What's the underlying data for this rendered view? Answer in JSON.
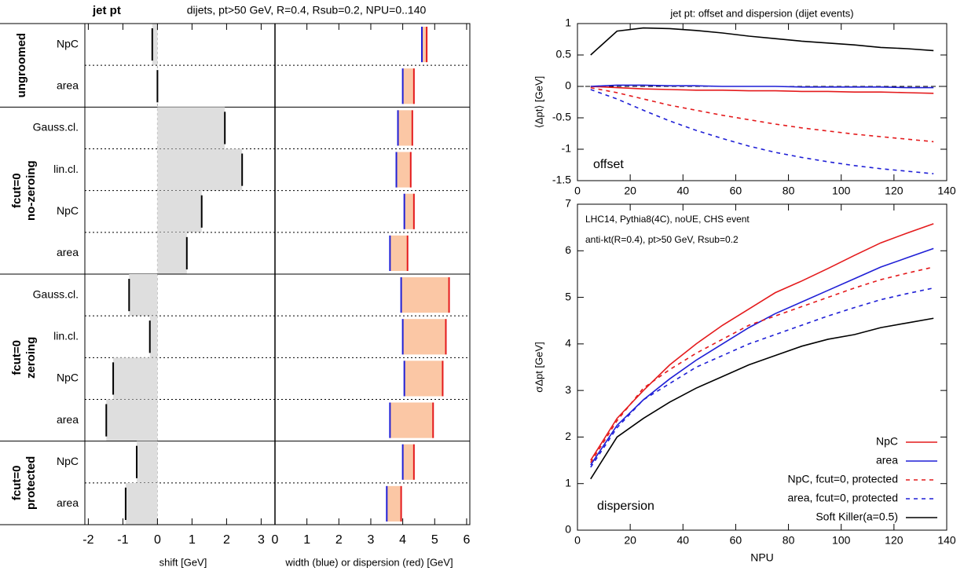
{
  "chart_data": [
    {
      "type": "summary",
      "title": "jet pt",
      "subtitle": "dijets, pt>50 GeV, R=0.4, Rsub=0.2, NPU=0..140",
      "xlabel": "shift [GeV]",
      "x2label": "width (blue) or dispersion (red) [GeV]",
      "xlim": [
        -2.1,
        3.4
      ],
      "xticks": [
        -2,
        -1,
        0,
        1,
        2,
        3
      ],
      "x2lim": [
        0,
        6.1
      ],
      "x2ticks": [
        0,
        1,
        2,
        3,
        4,
        5,
        6
      ],
      "groups": [
        {
          "name": [
            "ungroomed"
          ],
          "categories": [
            "NpC",
            "area"
          ],
          "shift": [
            -0.15,
            0.0
          ],
          "width": [
            4.6,
            4.0
          ],
          "dispersion": [
            4.75,
            4.35
          ]
        },
        {
          "name": [
            "fcut=0",
            "no-zeroing"
          ],
          "categories": [
            "Gauss.cl.",
            "lin.cl.",
            "NpC",
            "area"
          ],
          "shift": [
            1.95,
            2.45,
            1.28,
            0.85
          ],
          "width": [
            3.85,
            3.8,
            4.05,
            3.6
          ],
          "dispersion": [
            4.3,
            4.25,
            4.35,
            4.15
          ]
        },
        {
          "name": [
            "fcut=0",
            "zeroing"
          ],
          "categories": [
            "Gauss.cl.",
            "lin.cl.",
            "NpC",
            "area"
          ],
          "shift": [
            -0.82,
            -0.22,
            -1.28,
            -1.48
          ],
          "width": [
            3.95,
            4.0,
            4.05,
            3.6
          ],
          "dispersion": [
            5.45,
            5.35,
            5.25,
            4.95
          ]
        },
        {
          "name": [
            "fcut=0",
            "protected"
          ],
          "categories": [
            "NpC",
            "area"
          ],
          "shift": [
            -0.6,
            -0.92
          ],
          "width": [
            4.0,
            3.5
          ],
          "dispersion": [
            4.35,
            3.95
          ]
        }
      ]
    },
    {
      "type": "line",
      "title": "jet pt: offset and dispersion (dijet events)",
      "ylabel": "⟨Δpt⟩ [GeV]",
      "annotation": "offset",
      "x": [
        5,
        15,
        25,
        35,
        45,
        55,
        65,
        75,
        85,
        95,
        105,
        115,
        125,
        135
      ],
      "xlim": [
        0,
        140
      ],
      "xticks": [
        0,
        20,
        40,
        60,
        80,
        100,
        120,
        140
      ],
      "ylim": [
        -1.5,
        1
      ],
      "yticks": [
        -1.5,
        -1,
        -0.5,
        0,
        0.5,
        1
      ],
      "zero_line": true,
      "series": [
        {
          "color": "#e41a1c",
          "dashed": false,
          "values": [
            0,
            -0.02,
            -0.04,
            -0.05,
            -0.06,
            -0.06,
            -0.07,
            -0.07,
            -0.08,
            -0.08,
            -0.09,
            -0.09,
            -0.1,
            -0.11
          ]
        },
        {
          "color": "#1f1fd6",
          "dashed": false,
          "values": [
            0,
            0.02,
            0.02,
            0.01,
            0.01,
            0,
            0,
            0,
            -0.01,
            -0.01,
            -0.01,
            -0.01,
            -0.02,
            -0.02
          ]
        },
        {
          "color": "#e41a1c",
          "dashed": true,
          "values": [
            -0.02,
            -0.1,
            -0.2,
            -0.3,
            -0.38,
            -0.46,
            -0.53,
            -0.6,
            -0.66,
            -0.71,
            -0.76,
            -0.8,
            -0.84,
            -0.88
          ]
        },
        {
          "color": "#1f1fd6",
          "dashed": true,
          "values": [
            -0.05,
            -0.2,
            -0.38,
            -0.55,
            -0.7,
            -0.83,
            -0.95,
            -1.05,
            -1.13,
            -1.2,
            -1.26,
            -1.31,
            -1.35,
            -1.39
          ]
        },
        {
          "color": "#000000",
          "dashed": false,
          "values": [
            0.5,
            0.88,
            0.93,
            0.92,
            0.89,
            0.85,
            0.8,
            0.76,
            0.72,
            0.69,
            0.66,
            0.62,
            0.6,
            0.57
          ]
        }
      ]
    },
    {
      "type": "line",
      "xlabel": "NPU",
      "ylabel": "σΔpt [GeV]",
      "annotation": "dispersion",
      "notes": [
        "LHC14, Pythia8(4C), noUE, CHS event",
        "anti-kt(R=0.4), pt>50 GeV, Rsub=0.2"
      ],
      "x": [
        5,
        15,
        25,
        35,
        45,
        55,
        65,
        75,
        85,
        95,
        105,
        115,
        125,
        135
      ],
      "xlim": [
        0,
        140
      ],
      "xticks": [
        0,
        20,
        40,
        60,
        80,
        100,
        120,
        140
      ],
      "ylim": [
        0,
        7
      ],
      "yticks": [
        0,
        1,
        2,
        3,
        4,
        5,
        6,
        7
      ],
      "legend": "lower-right",
      "series": [
        {
          "name": "NpC",
          "color": "#e41a1c",
          "dashed": false,
          "values": [
            1.5,
            2.4,
            3.0,
            3.55,
            4.0,
            4.4,
            4.75,
            5.1,
            5.35,
            5.62,
            5.9,
            6.17,
            6.38,
            6.58
          ]
        },
        {
          "name": "area",
          "color": "#1f1fd6",
          "dashed": false,
          "values": [
            1.4,
            2.25,
            2.8,
            3.25,
            3.65,
            4.0,
            4.35,
            4.65,
            4.9,
            5.15,
            5.4,
            5.65,
            5.85,
            6.05
          ]
        },
        {
          "name": "NpC, fcut=0, protected",
          "color": "#e41a1c",
          "dashed": true,
          "values": [
            1.45,
            2.35,
            3.05,
            3.45,
            3.8,
            4.1,
            4.4,
            4.6,
            4.8,
            5.0,
            5.2,
            5.38,
            5.52,
            5.65
          ]
        },
        {
          "name": "area, fcut=0, protected",
          "color": "#1f1fd6",
          "dashed": true,
          "values": [
            1.35,
            2.2,
            2.8,
            3.15,
            3.5,
            3.75,
            4.0,
            4.2,
            4.4,
            4.6,
            4.78,
            4.95,
            5.08,
            5.2
          ]
        },
        {
          "name": "Soft Killer(a=0.5)",
          "color": "#000000",
          "dashed": false,
          "values": [
            1.1,
            2.0,
            2.4,
            2.75,
            3.05,
            3.3,
            3.55,
            3.75,
            3.95,
            4.1,
            4.2,
            4.35,
            4.45,
            4.55
          ]
        }
      ]
    }
  ]
}
